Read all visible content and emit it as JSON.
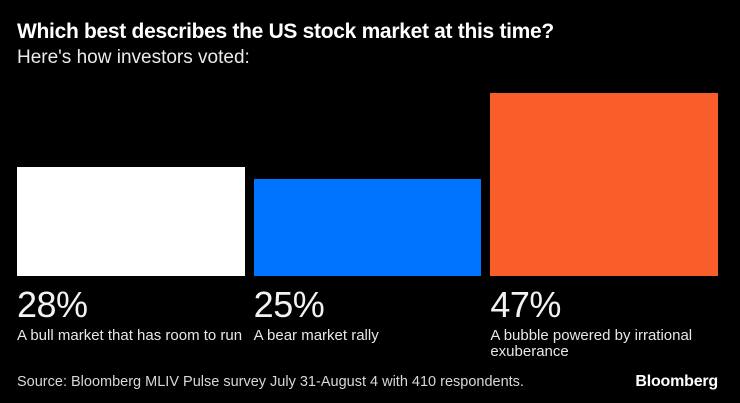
{
  "header": {
    "title": "Which best describes the US stock market at this time?",
    "subtitle": "Here's how investors voted:"
  },
  "chart_data": {
    "type": "bar",
    "title": "Which best describes the US stock market at this time?",
    "subtitle": "Here's how investors voted:",
    "categories": [
      "A bull market that has room to run",
      "A bear market rally",
      "A bubble powered by irrational exuberance"
    ],
    "values": [
      28,
      25,
      47
    ],
    "value_labels": [
      "28%",
      "25%",
      "47%"
    ],
    "bar_colors": [
      "#ffffff",
      "#0074ff",
      "#f95d2a"
    ],
    "unit": "%",
    "ylim": [
      0,
      47
    ],
    "orientation": "vertical",
    "grid": false,
    "axes_hidden": true,
    "background_color": "#000000"
  },
  "footer": {
    "source": "Source: Bloomberg MLIV Pulse survey July 31-August 4 with 410 respondents.",
    "brand": "Bloomberg"
  }
}
